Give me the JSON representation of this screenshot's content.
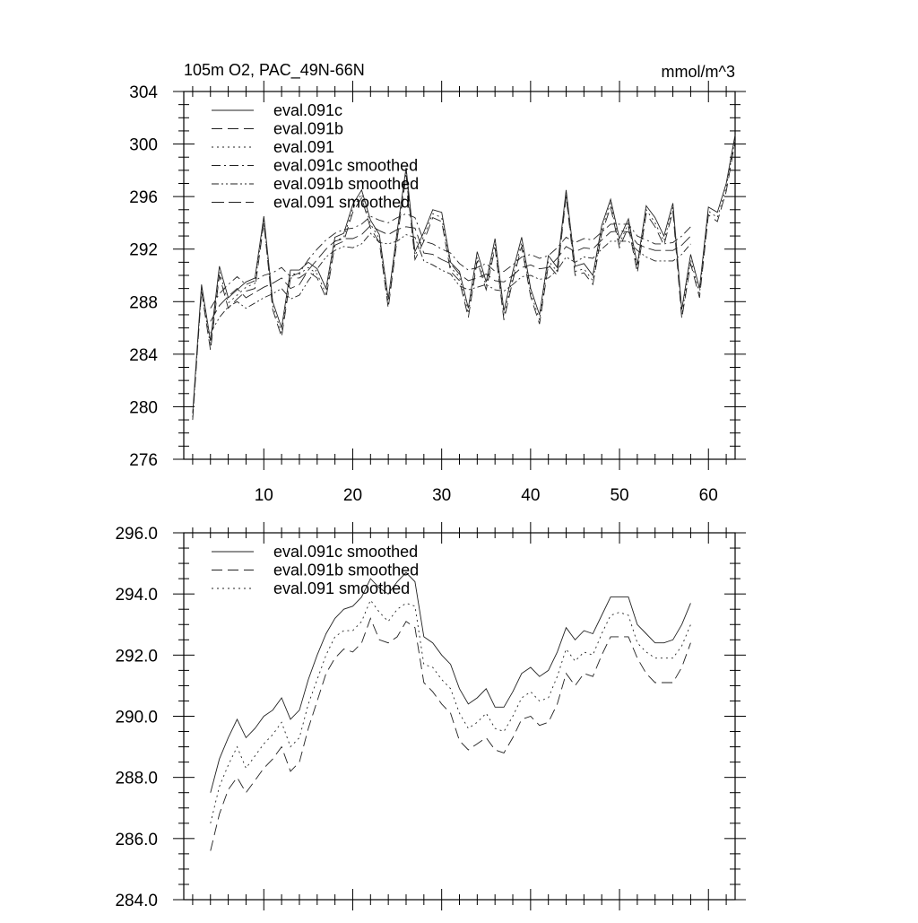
{
  "chart_data": [
    {
      "type": "line",
      "title": "105m O2, PAC_49N-66N",
      "units": "mmol/m^3",
      "xlabel": "",
      "ylabel": "",
      "xlim": [
        1,
        63
      ],
      "ylim": [
        276,
        304
      ],
      "xticks": [
        10,
        20,
        30,
        40,
        50,
        60
      ],
      "yticks": [
        276,
        280,
        284,
        288,
        292,
        296,
        300,
        304
      ],
      "legend_position": "top-left",
      "series": [
        {
          "name": "eval.091c",
          "style": "solid",
          "x_start": 2,
          "values": [
            279.5,
            289.3,
            285.0,
            290.7,
            288.3,
            288.9,
            289.5,
            289.8,
            294.5,
            288.0,
            286.0,
            290.4,
            290.4,
            291.0,
            290.5,
            289.0,
            292.9,
            293.2,
            295.4,
            296.5,
            294.2,
            293.1,
            288.2,
            293.4,
            298.2,
            291.8,
            293.3,
            295.0,
            294.8,
            291.0,
            290.3,
            287.5,
            291.8,
            289.5,
            292.8,
            287.3,
            290.3,
            292.9,
            289.0,
            287.0,
            291.5,
            290.6,
            296.5,
            290.7,
            290.9,
            290.0,
            293.8,
            295.8,
            292.8,
            294.3,
            290.8,
            295.3,
            294.4,
            293.0,
            295.5,
            287.4,
            291.6,
            289.0,
            295.2,
            294.8,
            297.0,
            300.7
          ]
        },
        {
          "name": "eval.091b",
          "style": "dashed",
          "x_start": 2,
          "values": [
            279.0,
            288.8,
            284.3,
            290.0,
            287.5,
            288.2,
            288.8,
            289.0,
            294.0,
            287.4,
            285.3,
            289.8,
            289.8,
            290.3,
            289.8,
            288.3,
            292.3,
            292.6,
            294.8,
            295.9,
            293.6,
            292.5,
            287.5,
            292.8,
            297.6,
            291.2,
            292.6,
            294.4,
            294.1,
            290.3,
            289.6,
            286.8,
            291.1,
            288.9,
            292.1,
            286.6,
            289.6,
            292.2,
            288.4,
            286.3,
            290.8,
            290.0,
            296.0,
            290.0,
            290.2,
            289.3,
            293.2,
            295.2,
            292.1,
            293.7,
            290.2,
            294.7,
            293.7,
            292.3,
            294.9,
            286.7,
            290.9,
            288.3,
            294.6,
            294.1,
            296.4,
            300.2
          ]
        },
        {
          "name": "eval.091",
          "style": "dotted",
          "x_start": 2,
          "values": [
            279.2,
            289.0,
            284.6,
            290.3,
            287.9,
            288.5,
            289.1,
            289.4,
            294.2,
            287.7,
            285.6,
            290.1,
            290.1,
            290.6,
            290.1,
            288.6,
            292.6,
            292.9,
            295.1,
            296.2,
            293.9,
            292.8,
            287.8,
            293.1,
            297.9,
            291.5,
            293.0,
            294.7,
            294.4,
            290.6,
            289.9,
            287.1,
            291.4,
            289.2,
            292.4,
            286.9,
            289.9,
            292.5,
            288.7,
            286.6,
            291.1,
            290.3,
            296.2,
            290.3,
            290.5,
            289.6,
            293.5,
            295.5,
            292.4,
            294.0,
            290.5,
            295.0,
            294.0,
            292.6,
            295.2,
            287.0,
            291.2,
            288.6,
            294.9,
            294.4,
            296.7,
            300.4
          ]
        },
        {
          "name": "eval.091c smoothed",
          "style": "dashdot",
          "x_start": 4,
          "values": [
            287.5,
            288.6,
            289.3,
            289.9,
            289.3,
            289.6,
            290.0,
            290.2,
            290.6,
            289.9,
            290.2,
            291.2,
            292.0,
            292.7,
            293.2,
            293.5,
            293.6,
            293.9,
            294.5,
            294.2,
            294.0,
            294.4,
            294.7,
            294.4,
            292.6,
            292.4,
            292.0,
            291.7,
            290.9,
            290.4,
            290.6,
            290.9,
            290.3,
            290.3,
            290.8,
            291.4,
            291.6,
            291.3,
            291.5,
            292.1,
            292.9,
            292.5,
            292.8,
            292.7,
            293.3,
            293.9,
            293.9,
            293.9,
            293.0,
            292.7,
            292.4,
            292.4,
            292.5,
            293.0,
            293.7
          ]
        },
        {
          "name": "eval.091b smoothed",
          "style": "dashdotdot",
          "x_start": 4,
          "values": [
            285.6,
            286.8,
            287.6,
            288.0,
            287.5,
            287.9,
            288.3,
            288.6,
            289.0,
            288.2,
            288.5,
            289.6,
            290.5,
            291.4,
            291.9,
            292.2,
            292.1,
            292.4,
            293.2,
            292.5,
            292.4,
            292.6,
            293.1,
            292.9,
            291.1,
            290.8,
            290.4,
            290.1,
            289.2,
            288.9,
            289.1,
            289.3,
            288.9,
            288.8,
            289.3,
            289.9,
            290.0,
            289.7,
            289.8,
            290.4,
            291.4,
            291.0,
            291.4,
            291.3,
            292.0,
            292.6,
            292.6,
            292.6,
            291.9,
            291.4,
            291.1,
            291.1,
            291.1,
            291.6,
            292.4
          ]
        },
        {
          "name": "eval.091 smoothed",
          "style": "longdash",
          "x_start": 4,
          "values": [
            286.5,
            287.7,
            288.4,
            289.0,
            288.3,
            288.7,
            289.1,
            289.4,
            289.8,
            289.0,
            289.3,
            290.4,
            291.2,
            292.0,
            292.6,
            292.8,
            292.8,
            293.1,
            293.8,
            293.4,
            293.1,
            293.5,
            293.7,
            293.6,
            291.7,
            291.6,
            291.2,
            290.9,
            290.1,
            289.6,
            289.8,
            290.1,
            289.6,
            289.5,
            290.0,
            290.6,
            290.8,
            290.5,
            290.6,
            291.3,
            292.2,
            291.8,
            292.1,
            292.0,
            292.7,
            293.3,
            293.4,
            293.3,
            292.4,
            292.1,
            291.9,
            291.9,
            291.9,
            292.3,
            293.0
          ]
        }
      ]
    },
    {
      "type": "line",
      "title": "",
      "xlabel": "",
      "ylabel": "",
      "xlim": [
        1,
        63
      ],
      "ylim": [
        284.0,
        296.0
      ],
      "xticks": [
        10,
        20,
        30,
        40,
        50,
        60
      ],
      "yticks": [
        "284.0",
        "286.0",
        "288.0",
        "290.0",
        "292.0",
        "294.0",
        "296.0"
      ],
      "legend_position": "top-left",
      "series": [
        {
          "name": "eval.091c smoothed",
          "style": "solid",
          "x_start": 4,
          "values": [
            287.5,
            288.6,
            289.3,
            289.9,
            289.3,
            289.6,
            290.0,
            290.2,
            290.6,
            289.9,
            290.2,
            291.2,
            292.0,
            292.7,
            293.2,
            293.5,
            293.6,
            293.9,
            294.5,
            294.2,
            294.0,
            294.4,
            294.7,
            294.4,
            292.6,
            292.4,
            292.0,
            291.7,
            290.9,
            290.4,
            290.6,
            290.9,
            290.3,
            290.3,
            290.8,
            291.4,
            291.6,
            291.3,
            291.5,
            292.1,
            292.9,
            292.5,
            292.8,
            292.7,
            293.3,
            293.9,
            293.9,
            293.9,
            293.0,
            292.7,
            292.4,
            292.4,
            292.5,
            293.0,
            293.7
          ]
        },
        {
          "name": "eval.091b smoothed",
          "style": "dashed",
          "x_start": 4,
          "values": [
            285.6,
            286.8,
            287.6,
            288.0,
            287.5,
            287.9,
            288.3,
            288.6,
            289.0,
            288.2,
            288.5,
            289.6,
            290.5,
            291.4,
            291.9,
            292.2,
            292.1,
            292.4,
            293.2,
            292.5,
            292.4,
            292.6,
            293.1,
            292.9,
            291.1,
            290.8,
            290.4,
            290.1,
            289.2,
            288.9,
            289.1,
            289.3,
            288.9,
            288.8,
            289.3,
            289.9,
            290.0,
            289.7,
            289.8,
            290.4,
            291.4,
            291.0,
            291.4,
            291.3,
            292.0,
            292.6,
            292.6,
            292.6,
            291.9,
            291.4,
            291.1,
            291.1,
            291.1,
            291.6,
            292.4
          ]
        },
        {
          "name": "eval.091 smoothed",
          "style": "dotted",
          "x_start": 4,
          "values": [
            286.5,
            287.7,
            288.4,
            289.0,
            288.3,
            288.7,
            289.1,
            289.4,
            289.8,
            289.0,
            289.3,
            290.4,
            291.2,
            292.0,
            292.6,
            292.8,
            292.8,
            293.1,
            293.8,
            293.4,
            293.1,
            293.5,
            293.7,
            293.6,
            291.7,
            291.6,
            291.2,
            290.9,
            290.1,
            289.6,
            289.8,
            290.1,
            289.6,
            289.5,
            290.0,
            290.6,
            290.8,
            290.5,
            290.6,
            291.3,
            292.2,
            291.8,
            292.1,
            292.0,
            292.7,
            293.3,
            293.4,
            293.3,
            292.4,
            292.1,
            291.9,
            291.9,
            291.9,
            292.3,
            293.0
          ]
        }
      ]
    }
  ]
}
